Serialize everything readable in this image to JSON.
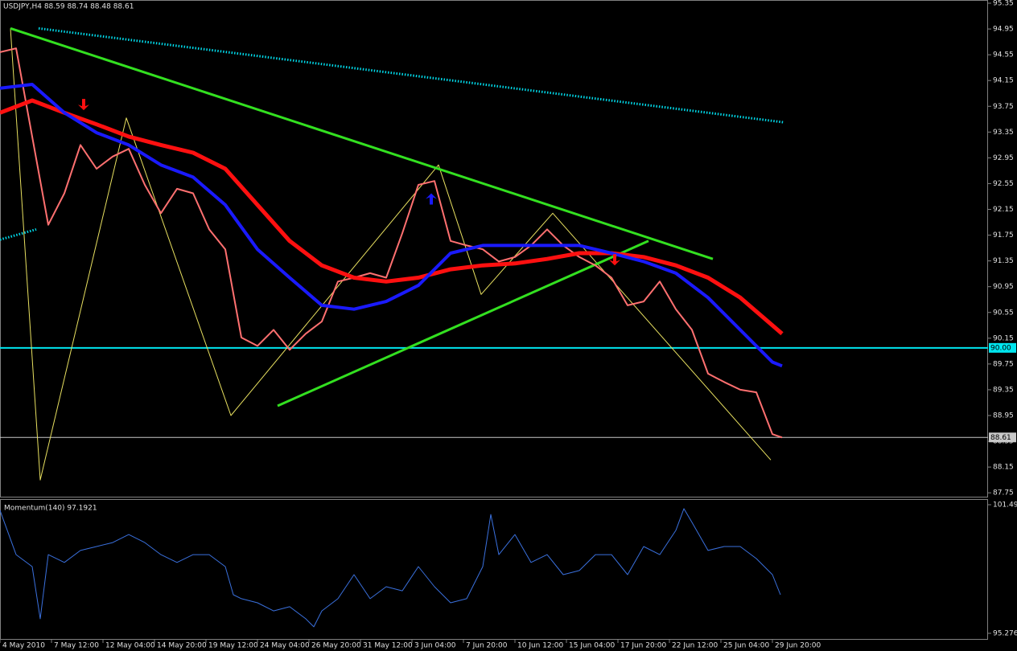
{
  "chart_data": [
    {
      "type": "line",
      "title": "USDJPY,H4 88.59 88.74 88.48 88.61",
      "xlim": [
        0,
        307
      ],
      "ylim": [
        87.69,
        95.4
      ],
      "yticks": [
        95.35,
        94.95,
        94.55,
        94.15,
        93.75,
        93.35,
        92.95,
        92.55,
        92.15,
        91.75,
        91.35,
        90.95,
        90.55,
        90.15,
        89.75,
        89.35,
        88.95,
        88.55,
        88.15,
        87.75
      ],
      "xticks": [
        {
          "value": 0,
          "label": "4 May 2010"
        },
        {
          "value": 16,
          "label": "7 May 12:00"
        },
        {
          "value": 32,
          "label": "12 May 04:00"
        },
        {
          "value": 48,
          "label": "14 May 20:00"
        },
        {
          "value": 64,
          "label": "19 May 12:00"
        },
        {
          "value": 80,
          "label": "24 May 04:00"
        },
        {
          "value": 96,
          "label": "26 May 20:00"
        },
        {
          "value": 112,
          "label": "31 May 12:00"
        },
        {
          "value": 128,
          "label": "3 Jun 04:00"
        },
        {
          "value": 144,
          "label": "7 Jun 20:00"
        },
        {
          "value": 160,
          "label": "10 Jun 12:00"
        },
        {
          "value": 176,
          "label": "15 Jun 04:00"
        },
        {
          "value": 192,
          "label": "17 Jun 20:00"
        },
        {
          "value": 208,
          "label": "22 Jun 12:00"
        },
        {
          "value": 224,
          "label": "25 Jun 04:00"
        },
        {
          "value": 240,
          "label": "29 Jun 20:00"
        }
      ],
      "hlines": [
        {
          "value": 90,
          "label": "90.00",
          "color": "#00e5ee"
        },
        {
          "value": 88.61,
          "color": "#c8c8c8"
        }
      ],
      "series": [
        {
          "color": "#00d8e8",
          "width": 3,
          "style": "dotted",
          "x": [
            12,
            243.75
          ],
          "values": [
            94.96,
            93.5
          ]
        },
        {
          "color": "#00d8e8",
          "width": 3,
          "style": "dotted",
          "x": [
            0,
            11.25
          ],
          "values": [
            91.68,
            91.84
          ]
        },
        {
          "color": "#e8e060",
          "width": 1,
          "x": [
            3.25,
            12.5,
            39.25,
            71.75,
            136.25,
            149.5,
            171.75,
            239.5
          ],
          "values": [
            94.96,
            87.95,
            93.57,
            88.95,
            92.84,
            90.83,
            92.09,
            88.26
          ]
        },
        {
          "color": "#33e020",
          "width": 3,
          "x": [
            3.25,
            221.5
          ],
          "values": [
            94.96,
            91.38
          ]
        },
        {
          "color": "#33e020",
          "width": 3,
          "x": [
            86.25,
            201.5
          ],
          "values": [
            89.1,
            91.66
          ]
        },
        {
          "color": "#ff7070",
          "width": 2,
          "x": [
            0,
            5,
            10,
            15,
            20,
            25,
            30,
            35,
            40,
            45,
            50,
            55,
            60,
            65,
            70,
            75,
            80,
            85,
            90,
            95,
            100,
            105,
            110,
            115,
            120,
            125,
            130,
            135,
            140,
            145,
            150,
            155,
            160,
            165,
            170,
            175,
            180,
            185,
            190,
            195,
            200,
            205,
            210,
            215,
            220,
            225,
            230,
            235,
            240,
            243
          ],
          "values": [
            94.59,
            94.65,
            93.28,
            91.91,
            92.4,
            93.15,
            92.78,
            92.97,
            93.09,
            92.53,
            92.09,
            92.47,
            92.4,
            91.84,
            91.53,
            90.16,
            90.03,
            90.28,
            89.97,
            90.22,
            90.41,
            91.03,
            91.09,
            91.16,
            91.09,
            91.78,
            92.53,
            92.59,
            91.66,
            91.59,
            91.53,
            91.34,
            91.41,
            91.59,
            91.84,
            91.59,
            91.41,
            91.28,
            91.09,
            90.66,
            90.72,
            91.03,
            90.6,
            90.28,
            89.6,
            89.47,
            89.35,
            89.31,
            88.66,
            88.61
          ]
        },
        {
          "color": "#ff1010",
          "width": 5,
          "x": [
            0,
            10,
            20,
            30,
            40,
            50,
            60,
            70,
            80,
            90,
            100,
            110,
            120,
            130,
            140,
            150,
            160,
            170,
            180,
            190,
            200,
            210,
            220,
            230,
            240,
            243
          ],
          "values": [
            93.65,
            93.84,
            93.65,
            93.47,
            93.28,
            93.15,
            93.03,
            92.78,
            92.22,
            91.66,
            91.28,
            91.09,
            91.03,
            91.09,
            91.22,
            91.28,
            91.31,
            91.38,
            91.47,
            91.47,
            91.41,
            91.28,
            91.09,
            90.78,
            90.35,
            90.22
          ]
        },
        {
          "color": "#1a1aff",
          "width": 4,
          "x": [
            0,
            10,
            20,
            30,
            40,
            50,
            60,
            70,
            80,
            90,
            100,
            110,
            120,
            130,
            140,
            150,
            160,
            170,
            180,
            190,
            200,
            210,
            220,
            230,
            240,
            243
          ],
          "values": [
            94.03,
            94.09,
            93.65,
            93.34,
            93.15,
            92.84,
            92.65,
            92.22,
            91.53,
            91.09,
            90.66,
            90.6,
            90.72,
            90.97,
            91.47,
            91.59,
            91.59,
            91.59,
            91.59,
            91.47,
            91.34,
            91.16,
            90.78,
            90.28,
            89.78,
            89.72
          ]
        }
      ],
      "arrows": [
        {
          "x": 26,
          "value": 93.69,
          "direction": "down",
          "color": "#ff1010"
        },
        {
          "x": 134,
          "value": 92.4,
          "direction": "up",
          "color": "#1a1aff"
        },
        {
          "x": 191,
          "value": 91.28,
          "direction": "down",
          "color": "#ff1010"
        }
      ]
    },
    {
      "type": "line",
      "title": "Momentum(140) 97.1921",
      "xlim": [
        0,
        307
      ],
      "ylim": [
        94.965,
        101.724
      ],
      "yticks": [
        101.491,
        95.276
      ],
      "series": [
        {
          "color": "#3a70dd",
          "width": 1,
          "x": [
            0,
            5,
            10,
            12.5,
            15,
            20,
            25,
            30,
            35,
            40,
            45,
            50,
            55,
            60,
            65,
            70,
            72.5,
            75,
            80,
            85,
            90,
            95,
            97.5,
            100,
            105,
            110,
            115,
            120,
            125,
            130,
            135,
            140,
            145,
            150,
            152.5,
            155,
            160,
            165,
            170,
            175,
            180,
            185,
            190,
            195,
            200,
            205,
            210,
            212.5,
            215,
            220,
            225,
            230,
            235,
            240,
            242.5
          ],
          "values": [
            101.22,
            99.08,
            98.5,
            95.98,
            99.08,
            98.7,
            99.28,
            99.47,
            99.66,
            100.05,
            99.66,
            99.08,
            98.7,
            99.08,
            99.08,
            98.5,
            97.14,
            96.95,
            96.75,
            96.36,
            96.56,
            95.98,
            95.59,
            96.36,
            96.95,
            98.11,
            96.95,
            97.53,
            97.33,
            98.5,
            97.53,
            96.75,
            96.95,
            98.5,
            101.02,
            99.08,
            100.05,
            98.7,
            99.08,
            98.11,
            98.31,
            99.08,
            99.08,
            98.11,
            99.47,
            99.08,
            100.25,
            101.3,
            100.64,
            99.28,
            99.47,
            99.47,
            98.89,
            98.11,
            97.14
          ]
        }
      ]
    }
  ]
}
